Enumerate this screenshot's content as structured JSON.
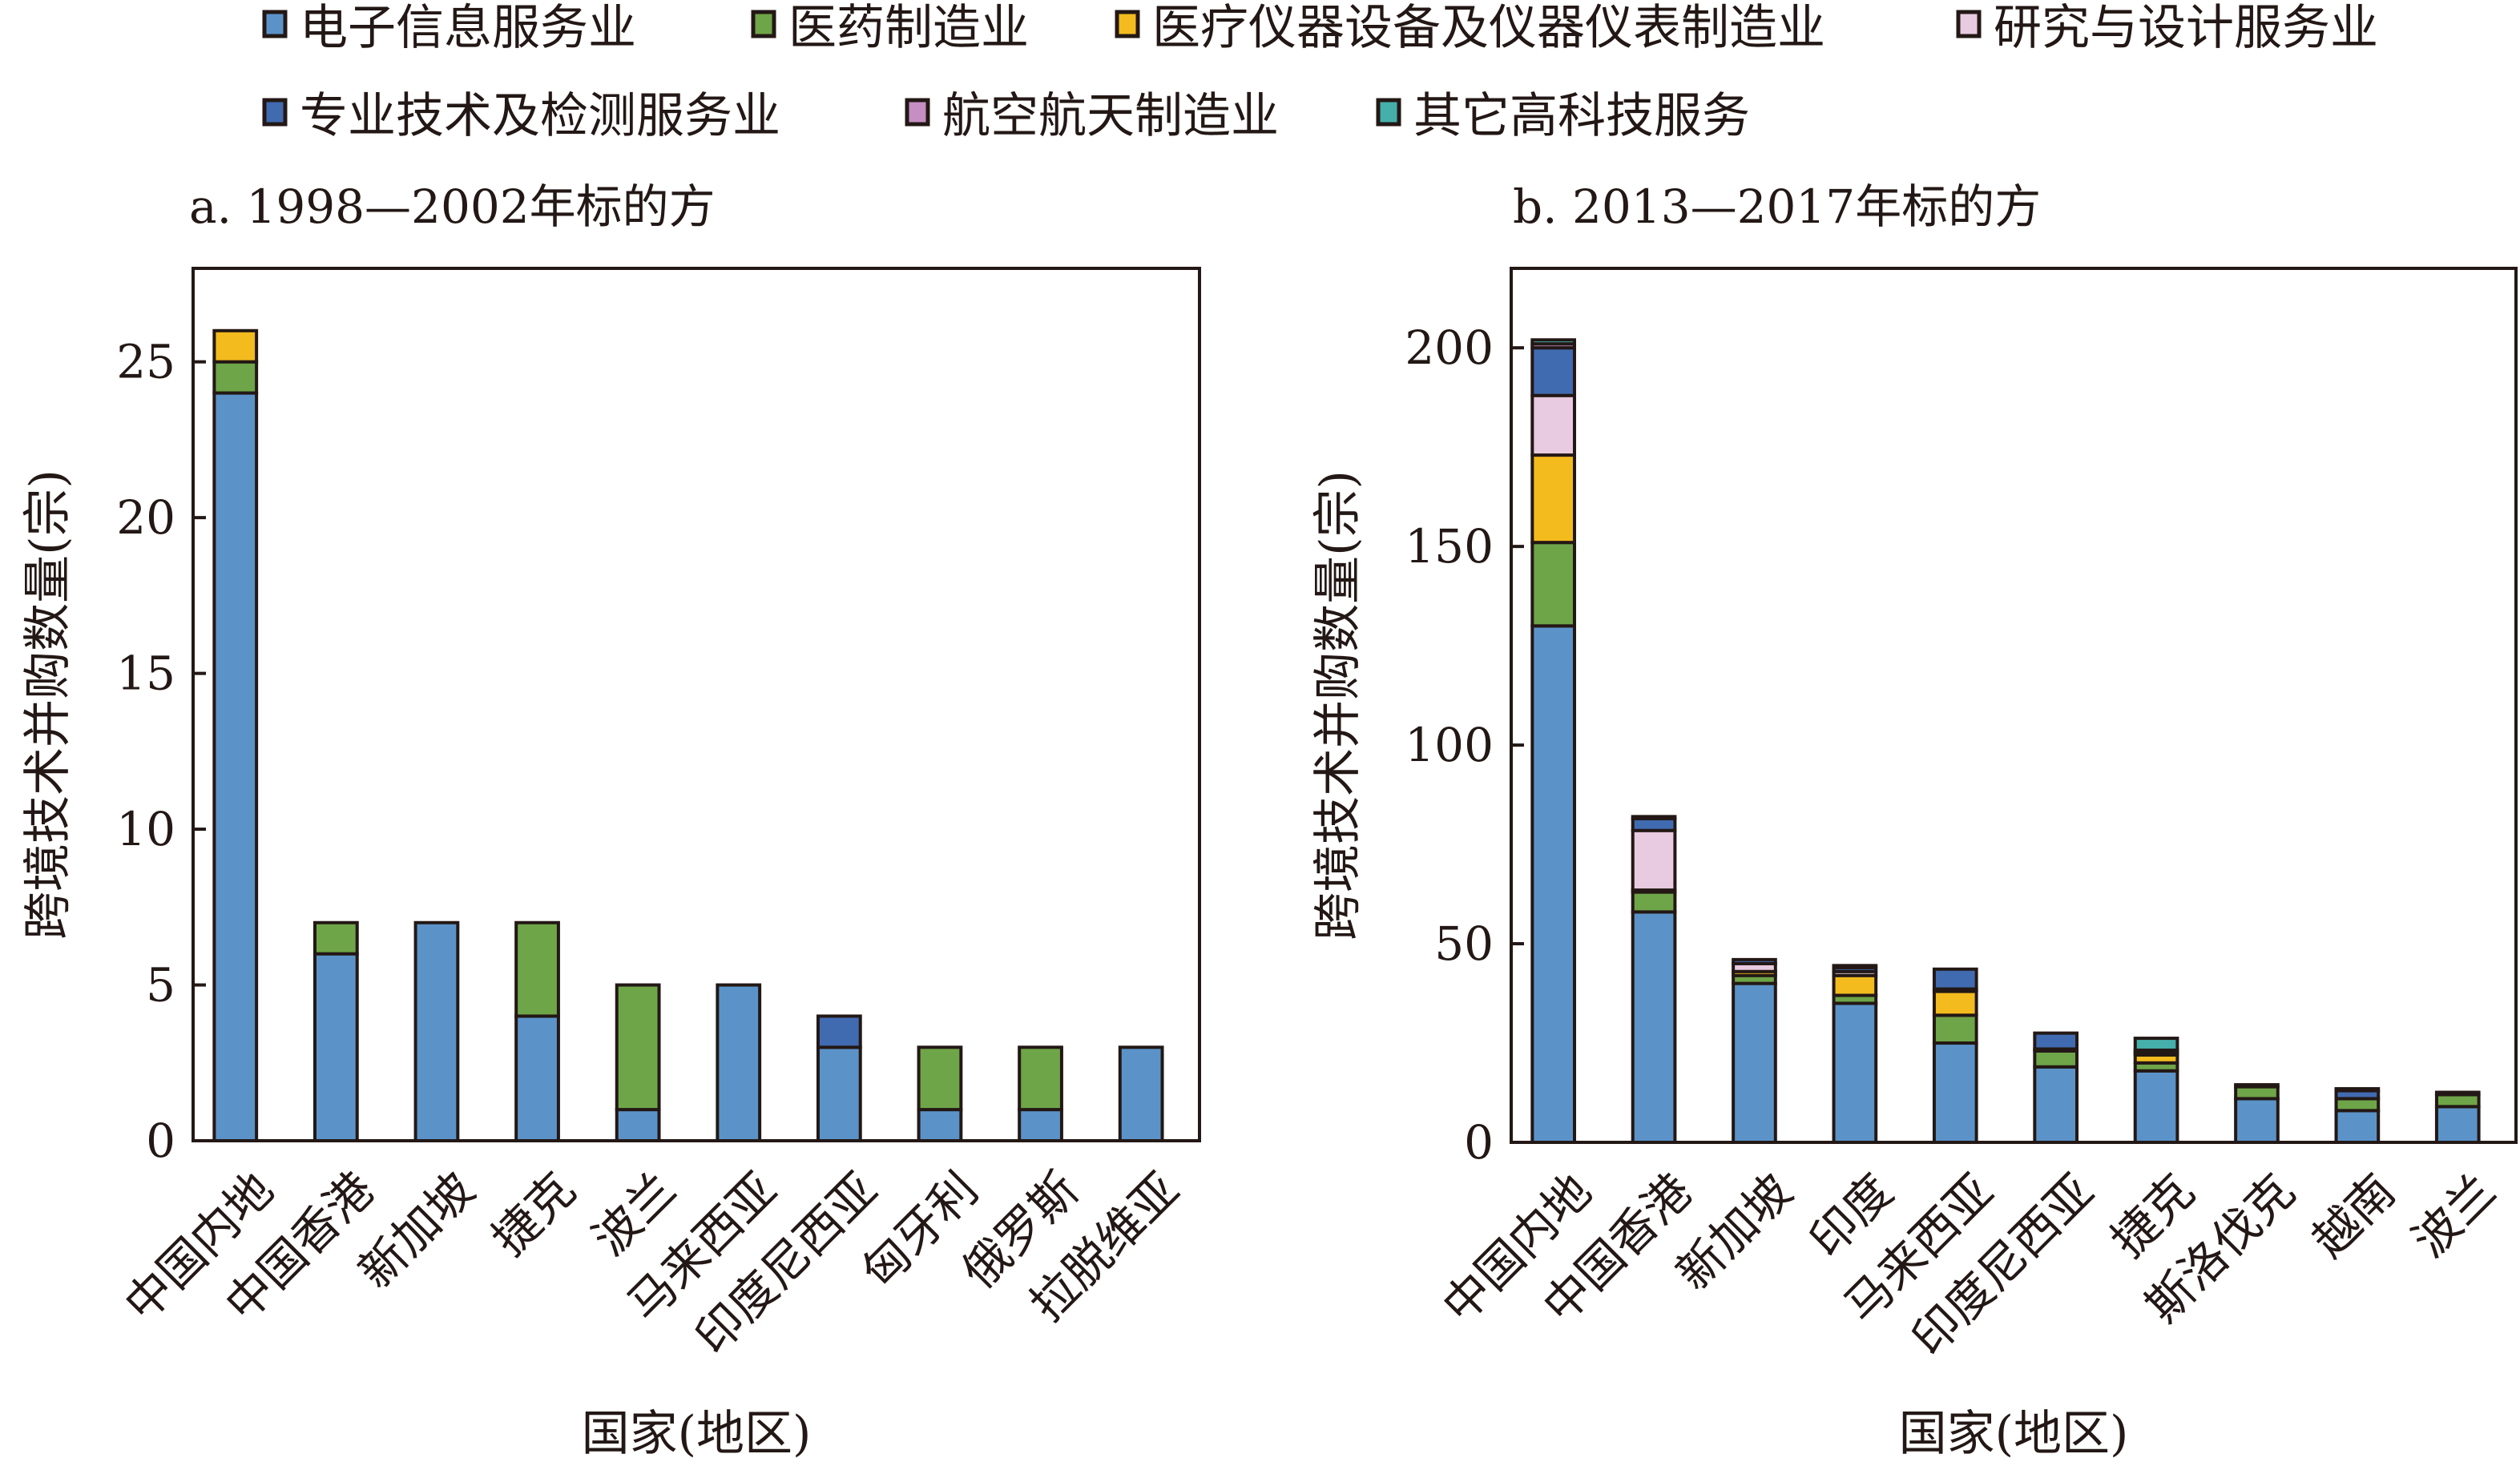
{
  "chart_data": [
    {
      "type": "bar",
      "stacked": true,
      "title": "a. 1998—2002年标的方",
      "xlabel": "国家(地区)",
      "ylabel": "跨境技术并购数量(宗)",
      "ylim": [
        0,
        28
      ],
      "yticks": [
        0,
        5,
        10,
        15,
        20,
        25
      ],
      "categories": [
        "中国内地",
        "中国香港",
        "新加坡",
        "捷克",
        "波兰",
        "马来西亚",
        "印度尼西亚",
        "匈牙利",
        "俄罗斯",
        "拉脱维亚"
      ],
      "series": [
        {
          "name": "电子信息服务业",
          "values": [
            24,
            6,
            7,
            4,
            1,
            5,
            3,
            1,
            1,
            3
          ]
        },
        {
          "name": "医药制造业",
          "values": [
            1,
            1,
            0,
            3,
            4,
            0,
            0,
            2,
            2,
            0
          ]
        },
        {
          "name": "医疗仪器设备及仪器仪表制造业",
          "values": [
            1,
            0,
            0,
            0,
            0,
            0,
            0,
            0,
            0,
            0
          ]
        },
        {
          "name": "研究与设计服务业",
          "values": [
            0,
            0,
            0,
            0,
            0,
            0,
            0,
            0,
            0,
            0
          ]
        },
        {
          "name": "专业技术及检测服务业",
          "values": [
            0,
            0,
            0,
            0,
            0,
            0,
            1,
            0,
            0,
            0
          ]
        },
        {
          "name": "航空航天制造业",
          "values": [
            0,
            0,
            0,
            0,
            0,
            0,
            0,
            0,
            0,
            0
          ]
        },
        {
          "name": "其它高科技服务",
          "values": [
            0,
            0,
            0,
            0,
            0,
            0,
            0,
            0,
            0,
            0
          ]
        }
      ]
    },
    {
      "type": "bar",
      "stacked": true,
      "title": "b. 2013—2017年标的方",
      "xlabel": "国家(地区)",
      "ylabel": "跨境技术并购数量(宗)",
      "ylim": [
        0,
        220
      ],
      "yticks": [
        0,
        50,
        100,
        150,
        200
      ],
      "categories": [
        "中国内地",
        "中国香港",
        "新加坡",
        "印度",
        "马来西亚",
        "印度尼西亚",
        "捷克",
        "斯洛伐克",
        "越南",
        "波兰"
      ],
      "series": [
        {
          "name": "电子信息服务业",
          "values": [
            130,
            58,
            40,
            35,
            25,
            19,
            18,
            11,
            8,
            9
          ]
        },
        {
          "name": "医药制造业",
          "values": [
            21,
            5,
            2,
            2,
            7,
            4,
            2,
            3,
            3,
            3
          ]
        },
        {
          "name": "医疗仪器设备及仪器仪表制造业",
          "values": [
            22,
            0.5,
            1,
            5,
            6,
            0,
            2,
            0,
            0,
            0
          ]
        },
        {
          "name": "研究与设计服务业",
          "values": [
            15,
            15,
            2,
            1,
            0.6,
            0.5,
            0.6,
            0,
            0,
            0.6
          ]
        },
        {
          "name": "专业技术及检测服务业",
          "values": [
            12,
            3,
            1,
            1,
            5,
            4,
            0,
            0.5,
            2,
            0
          ]
        },
        {
          "name": "航空航天制造业",
          "values": [
            1,
            0,
            0,
            0,
            0,
            0,
            0.6,
            0,
            0,
            0
          ]
        },
        {
          "name": "其它高科技服务",
          "values": [
            1,
            0.5,
            0,
            0.5,
            0,
            0,
            3,
            0,
            0.5,
            0
          ]
        }
      ]
    }
  ],
  "legend": {
    "items": [
      {
        "label": "电子信息服务业",
        "color": "#5b93c9"
      },
      {
        "label": "医药制造业",
        "color": "#6ea548"
      },
      {
        "label": "医疗仪器设备及仪器仪表制造业",
        "color": "#f3bb1e"
      },
      {
        "label": "研究与设计服务业",
        "color": "#e8cbe0"
      },
      {
        "label": "专业技术及检测服务业",
        "color": "#416bb1"
      },
      {
        "label": "航空航天制造业",
        "color": "#c58fc3"
      },
      {
        "label": "其它高科技服务",
        "color": "#45afab"
      }
    ]
  }
}
